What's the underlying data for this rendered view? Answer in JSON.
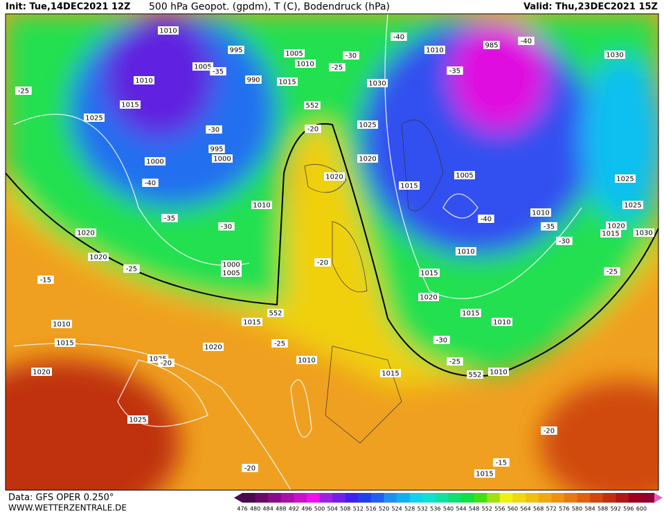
{
  "header": {
    "init": "Init: Tue,14DEC2021 12Z",
    "title": "500 hPa Geopot. (gpdm), T (C), Bodendruck (hPa)",
    "valid": "Valid: Thu,23DEC2021 15Z"
  },
  "footer": {
    "data": "Data: GFS OPER 0.250°",
    "site": "WWW.WETTERZENTRALE.DE"
  },
  "colorbar": {
    "labels": [
      476,
      480,
      484,
      488,
      492,
      496,
      500,
      504,
      508,
      512,
      516,
      520,
      524,
      528,
      532,
      536,
      540,
      544,
      548,
      552,
      556,
      560,
      564,
      568,
      572,
      576,
      580,
      584,
      588,
      592,
      596,
      600
    ],
    "colors": [
      "#4b0a4b",
      "#6a0a6a",
      "#8a0a8a",
      "#aa10aa",
      "#cc10cc",
      "#ee10ee",
      "#a020e0",
      "#7020e8",
      "#4020f0",
      "#2040f0",
      "#2060f0",
      "#2090f0",
      "#10b0f0",
      "#10d0f0",
      "#10e0d0",
      "#10e0a0",
      "#10e070",
      "#10e040",
      "#40e010",
      "#a0e010",
      "#f0f010",
      "#f0d810",
      "#f0c010",
      "#f0a810",
      "#f09010",
      "#e87810",
      "#e06010",
      "#d04810",
      "#c03010",
      "#b01818",
      "#a00020",
      "#900030"
    ]
  },
  "map": {
    "labels": [
      "1010",
      "995",
      "1005",
      "1005",
      "-35",
      "1010",
      "-25",
      "-30",
      "1030",
      "1010",
      "990",
      "1015",
      "-25",
      "1015",
      "552",
      "1025",
      "-20",
      "-30",
      "995",
      "1000",
      "1025",
      "1020",
      "1000",
      "-40",
      "1020",
      "1010",
      "-35",
      "-30",
      "1020",
      "1020",
      "-25",
      "-20",
      "1000",
      "1005",
      "-15",
      "1015",
      "552",
      "1010",
      "1015",
      "1020",
      "-25",
      "1025",
      "-20",
      "1010",
      "1020",
      "1015",
      "552",
      "1010",
      "1025",
      "-20",
      "1015",
      "-15",
      "-20",
      "-25",
      "-30",
      "1015",
      "1010",
      "1020",
      "1015",
      "1010",
      "-40",
      "1010",
      "-35",
      "-30",
      "1005",
      "1015",
      "-35",
      "1010",
      "985",
      "-40",
      "-40",
      "1030",
      "1025",
      "1025",
      "1020",
      "1015",
      "1030",
      "-25"
    ]
  }
}
